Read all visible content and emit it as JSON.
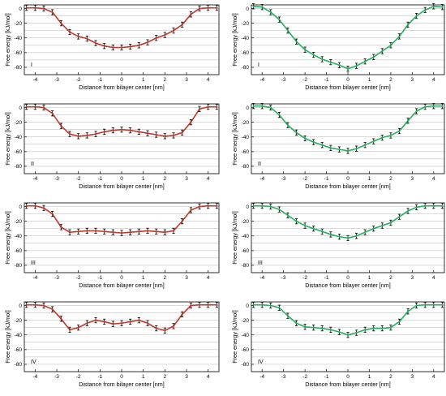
{
  "colors": {
    "left_series": "#c0392b",
    "right_series": "#27ae60",
    "error_bar": "#000000",
    "grid": "#b5b5b5"
  },
  "chart_data": [
    {
      "type": "line",
      "panel": "I",
      "column": "left",
      "xlabel": "Distance from bilayer center [nm]",
      "ylabel": "Free energy [kJ/mol]",
      "xlim": [
        -4.5,
        4.5
      ],
      "ylim": [
        -90,
        5
      ],
      "xticks": [
        -4,
        -3,
        -2,
        -1,
        0,
        1,
        2,
        3,
        4
      ],
      "yticks": [
        0,
        -20,
        -40,
        -60,
        -80
      ],
      "grid": "horizontal",
      "x": [
        -4.4,
        -4.0,
        -3.6,
        -3.2,
        -2.8,
        -2.4,
        -2.0,
        -1.6,
        -1.2,
        -0.8,
        -0.4,
        0.0,
        0.4,
        0.8,
        1.2,
        1.6,
        2.0,
        2.4,
        2.8,
        3.2,
        3.6,
        4.0,
        4.4
      ],
      "y": [
        1,
        1,
        0,
        -5,
        -20,
        -32,
        -38,
        -41,
        -47,
        -51,
        -53,
        -53,
        -52,
        -50,
        -46,
        -40,
        -36,
        -30,
        -22,
        -8,
        0,
        1,
        1
      ]
    },
    {
      "type": "line",
      "panel": "I",
      "column": "right",
      "xlabel": "Distance from bilayer center [nm]",
      "ylabel": "Free energy [kJ/mol]",
      "xlim": [
        -4.5,
        4.5
      ],
      "ylim": [
        -90,
        5
      ],
      "xticks": [
        -4,
        -3,
        -2,
        -1,
        0,
        1,
        2,
        3,
        4
      ],
      "yticks": [
        0,
        -20,
        -40,
        -60,
        -80
      ],
      "grid": "horizontal",
      "x": [
        -4.4,
        -4.0,
        -3.6,
        -3.2,
        -2.8,
        -2.4,
        -2.0,
        -1.6,
        -1.2,
        -0.8,
        -0.4,
        0.0,
        0.4,
        0.8,
        1.2,
        1.6,
        2.0,
        2.4,
        2.8,
        3.2,
        3.6,
        4.0,
        4.4
      ],
      "y": [
        3,
        2,
        -5,
        -15,
        -30,
        -45,
        -56,
        -63,
        -69,
        -73,
        -77,
        -82,
        -78,
        -72,
        -66,
        -58,
        -50,
        -38,
        -22,
        -10,
        -2,
        3,
        2
      ]
    },
    {
      "type": "line",
      "panel": "II",
      "column": "left",
      "xlabel": "Distance from bilayer center [nm]",
      "ylabel": "Free energy [kJ/mol]",
      "xlim": [
        -4.5,
        4.5
      ],
      "ylim": [
        -90,
        5
      ],
      "xticks": [
        -4,
        -3,
        -2,
        -1,
        0,
        1,
        2,
        3,
        4
      ],
      "yticks": [
        0,
        -20,
        -40,
        -60,
        -80
      ],
      "grid": "horizontal",
      "x": [
        -4.4,
        -4.0,
        -3.6,
        -3.2,
        -2.8,
        -2.4,
        -2.0,
        -1.6,
        -1.2,
        -0.8,
        -0.4,
        0.0,
        0.4,
        0.8,
        1.2,
        1.6,
        2.0,
        2.4,
        2.8,
        3.2,
        3.6,
        4.0,
        4.4
      ],
      "y": [
        1,
        1,
        0,
        -8,
        -25,
        -36,
        -39,
        -38,
        -36,
        -33,
        -31,
        -30,
        -31,
        -33,
        -35,
        -37,
        -39,
        -38,
        -34,
        -20,
        -2,
        1,
        1
      ]
    },
    {
      "type": "line",
      "panel": "II",
      "column": "right",
      "xlabel": "Distance from bilayer center [nm]",
      "ylabel": "Free energy [kJ/mol]",
      "xlim": [
        -4.5,
        4.5
      ],
      "ylim": [
        -90,
        5
      ],
      "xticks": [
        -4,
        -3,
        -2,
        -1,
        0,
        1,
        2,
        3,
        4
      ],
      "yticks": [
        0,
        -20,
        -40,
        -60,
        -80
      ],
      "grid": "horizontal",
      "x": [
        -4.4,
        -4.0,
        -3.6,
        -3.2,
        -2.8,
        -2.4,
        -2.0,
        -1.6,
        -1.2,
        -0.8,
        -0.4,
        0.0,
        0.4,
        0.8,
        1.2,
        1.6,
        2.0,
        2.4,
        2.8,
        3.2,
        3.6,
        4.0,
        4.4
      ],
      "y": [
        2,
        2,
        0,
        -10,
        -24,
        -34,
        -42,
        -47,
        -51,
        -55,
        -57,
        -59,
        -56,
        -51,
        -46,
        -41,
        -38,
        -32,
        -18,
        -5,
        1,
        2,
        2
      ]
    },
    {
      "type": "line",
      "panel": "III",
      "column": "left",
      "xlabel": "Distance from bilayer center [nm]",
      "ylabel": "Free energy [kJ/mol]",
      "xlim": [
        -4.5,
        4.5
      ],
      "ylim": [
        -90,
        5
      ],
      "xticks": [
        -4,
        -3,
        -2,
        -1,
        0,
        1,
        2,
        3,
        4
      ],
      "yticks": [
        0,
        -20,
        -40,
        -60,
        -80
      ],
      "grid": "horizontal",
      "x": [
        -4.4,
        -4.0,
        -3.6,
        -3.2,
        -2.8,
        -2.4,
        -2.0,
        -1.6,
        -1.2,
        -0.8,
        -0.4,
        0.0,
        0.4,
        0.8,
        1.2,
        1.6,
        2.0,
        2.4,
        2.8,
        3.2,
        3.6,
        4.0,
        4.4
      ],
      "y": [
        1,
        1,
        -2,
        -10,
        -28,
        -35,
        -34,
        -33,
        -33,
        -34,
        -35,
        -36,
        -35,
        -34,
        -33,
        -34,
        -35,
        -33,
        -20,
        -5,
        0,
        1,
        1
      ]
    },
    {
      "type": "line",
      "panel": "III",
      "column": "right",
      "xlabel": "Distance from bilayer center [nm]",
      "ylabel": "Free energy [kJ/mol]",
      "xlim": [
        -4.5,
        4.5
      ],
      "ylim": [
        -90,
        5
      ],
      "xticks": [
        -4,
        -3,
        -2,
        -1,
        0,
        1,
        2,
        3,
        4
      ],
      "yticks": [
        0,
        -20,
        -40,
        -60,
        -80
      ],
      "grid": "horizontal",
      "x": [
        -4.4,
        -4.0,
        -3.6,
        -3.2,
        -2.8,
        -2.4,
        -2.0,
        -1.6,
        -1.2,
        -0.8,
        -0.4,
        0.0,
        0.4,
        0.8,
        1.2,
        1.6,
        2.0,
        2.4,
        2.8,
        3.2,
        3.6,
        4.0,
        4.4
      ],
      "y": [
        1,
        1,
        0,
        -4,
        -12,
        -20,
        -26,
        -30,
        -34,
        -38,
        -41,
        -43,
        -40,
        -35,
        -30,
        -26,
        -22,
        -14,
        -6,
        -1,
        1,
        1,
        1
      ]
    },
    {
      "type": "line",
      "panel": "IV",
      "column": "left",
      "xlabel": "Distance from bilayer center [nm]",
      "ylabel": "Free energy [kJ/mol]",
      "xlim": [
        -4.5,
        4.5
      ],
      "ylim": [
        -90,
        5
      ],
      "xticks": [
        -4,
        -3,
        -2,
        -1,
        0,
        1,
        2,
        3,
        4
      ],
      "yticks": [
        0,
        -20,
        -40,
        -60,
        -80
      ],
      "grid": "horizontal",
      "x": [
        -4.4,
        -4.0,
        -3.6,
        -3.2,
        -2.8,
        -2.4,
        -2.0,
        -1.6,
        -1.2,
        -0.8,
        -0.4,
        0.0,
        0.4,
        0.8,
        1.2,
        1.6,
        2.0,
        2.4,
        2.8,
        3.2,
        3.6,
        4.0,
        4.4
      ],
      "y": [
        1,
        1,
        0,
        -5,
        -18,
        -33,
        -30,
        -24,
        -20,
        -22,
        -25,
        -24,
        -22,
        -20,
        -24,
        -31,
        -34,
        -28,
        -12,
        0,
        1,
        1,
        1
      ]
    },
    {
      "type": "line",
      "panel": "IV",
      "column": "right",
      "xlabel": "Distance from bilayer center [nm]",
      "ylabel": "Free energy [kJ/mol]",
      "xlim": [
        -4.5,
        4.5
      ],
      "ylim": [
        -90,
        5
      ],
      "xticks": [
        -4,
        -3,
        -2,
        -1,
        0,
        1,
        2,
        3,
        4
      ],
      "yticks": [
        0,
        -20,
        -40,
        -60,
        -80
      ],
      "grid": "horizontal",
      "x": [
        -4.4,
        -4.0,
        -3.6,
        -3.2,
        -2.8,
        -2.4,
        -2.0,
        -1.6,
        -1.2,
        -0.8,
        -0.4,
        0.0,
        0.4,
        0.8,
        1.2,
        1.6,
        2.0,
        2.4,
        2.8,
        3.2,
        3.6,
        4.0,
        4.4
      ],
      "y": [
        1,
        1,
        0,
        -3,
        -14,
        -24,
        -29,
        -30,
        -31,
        -33,
        -36,
        -40,
        -37,
        -33,
        -31,
        -31,
        -30,
        -22,
        -8,
        0,
        1,
        1,
        1
      ]
    }
  ]
}
